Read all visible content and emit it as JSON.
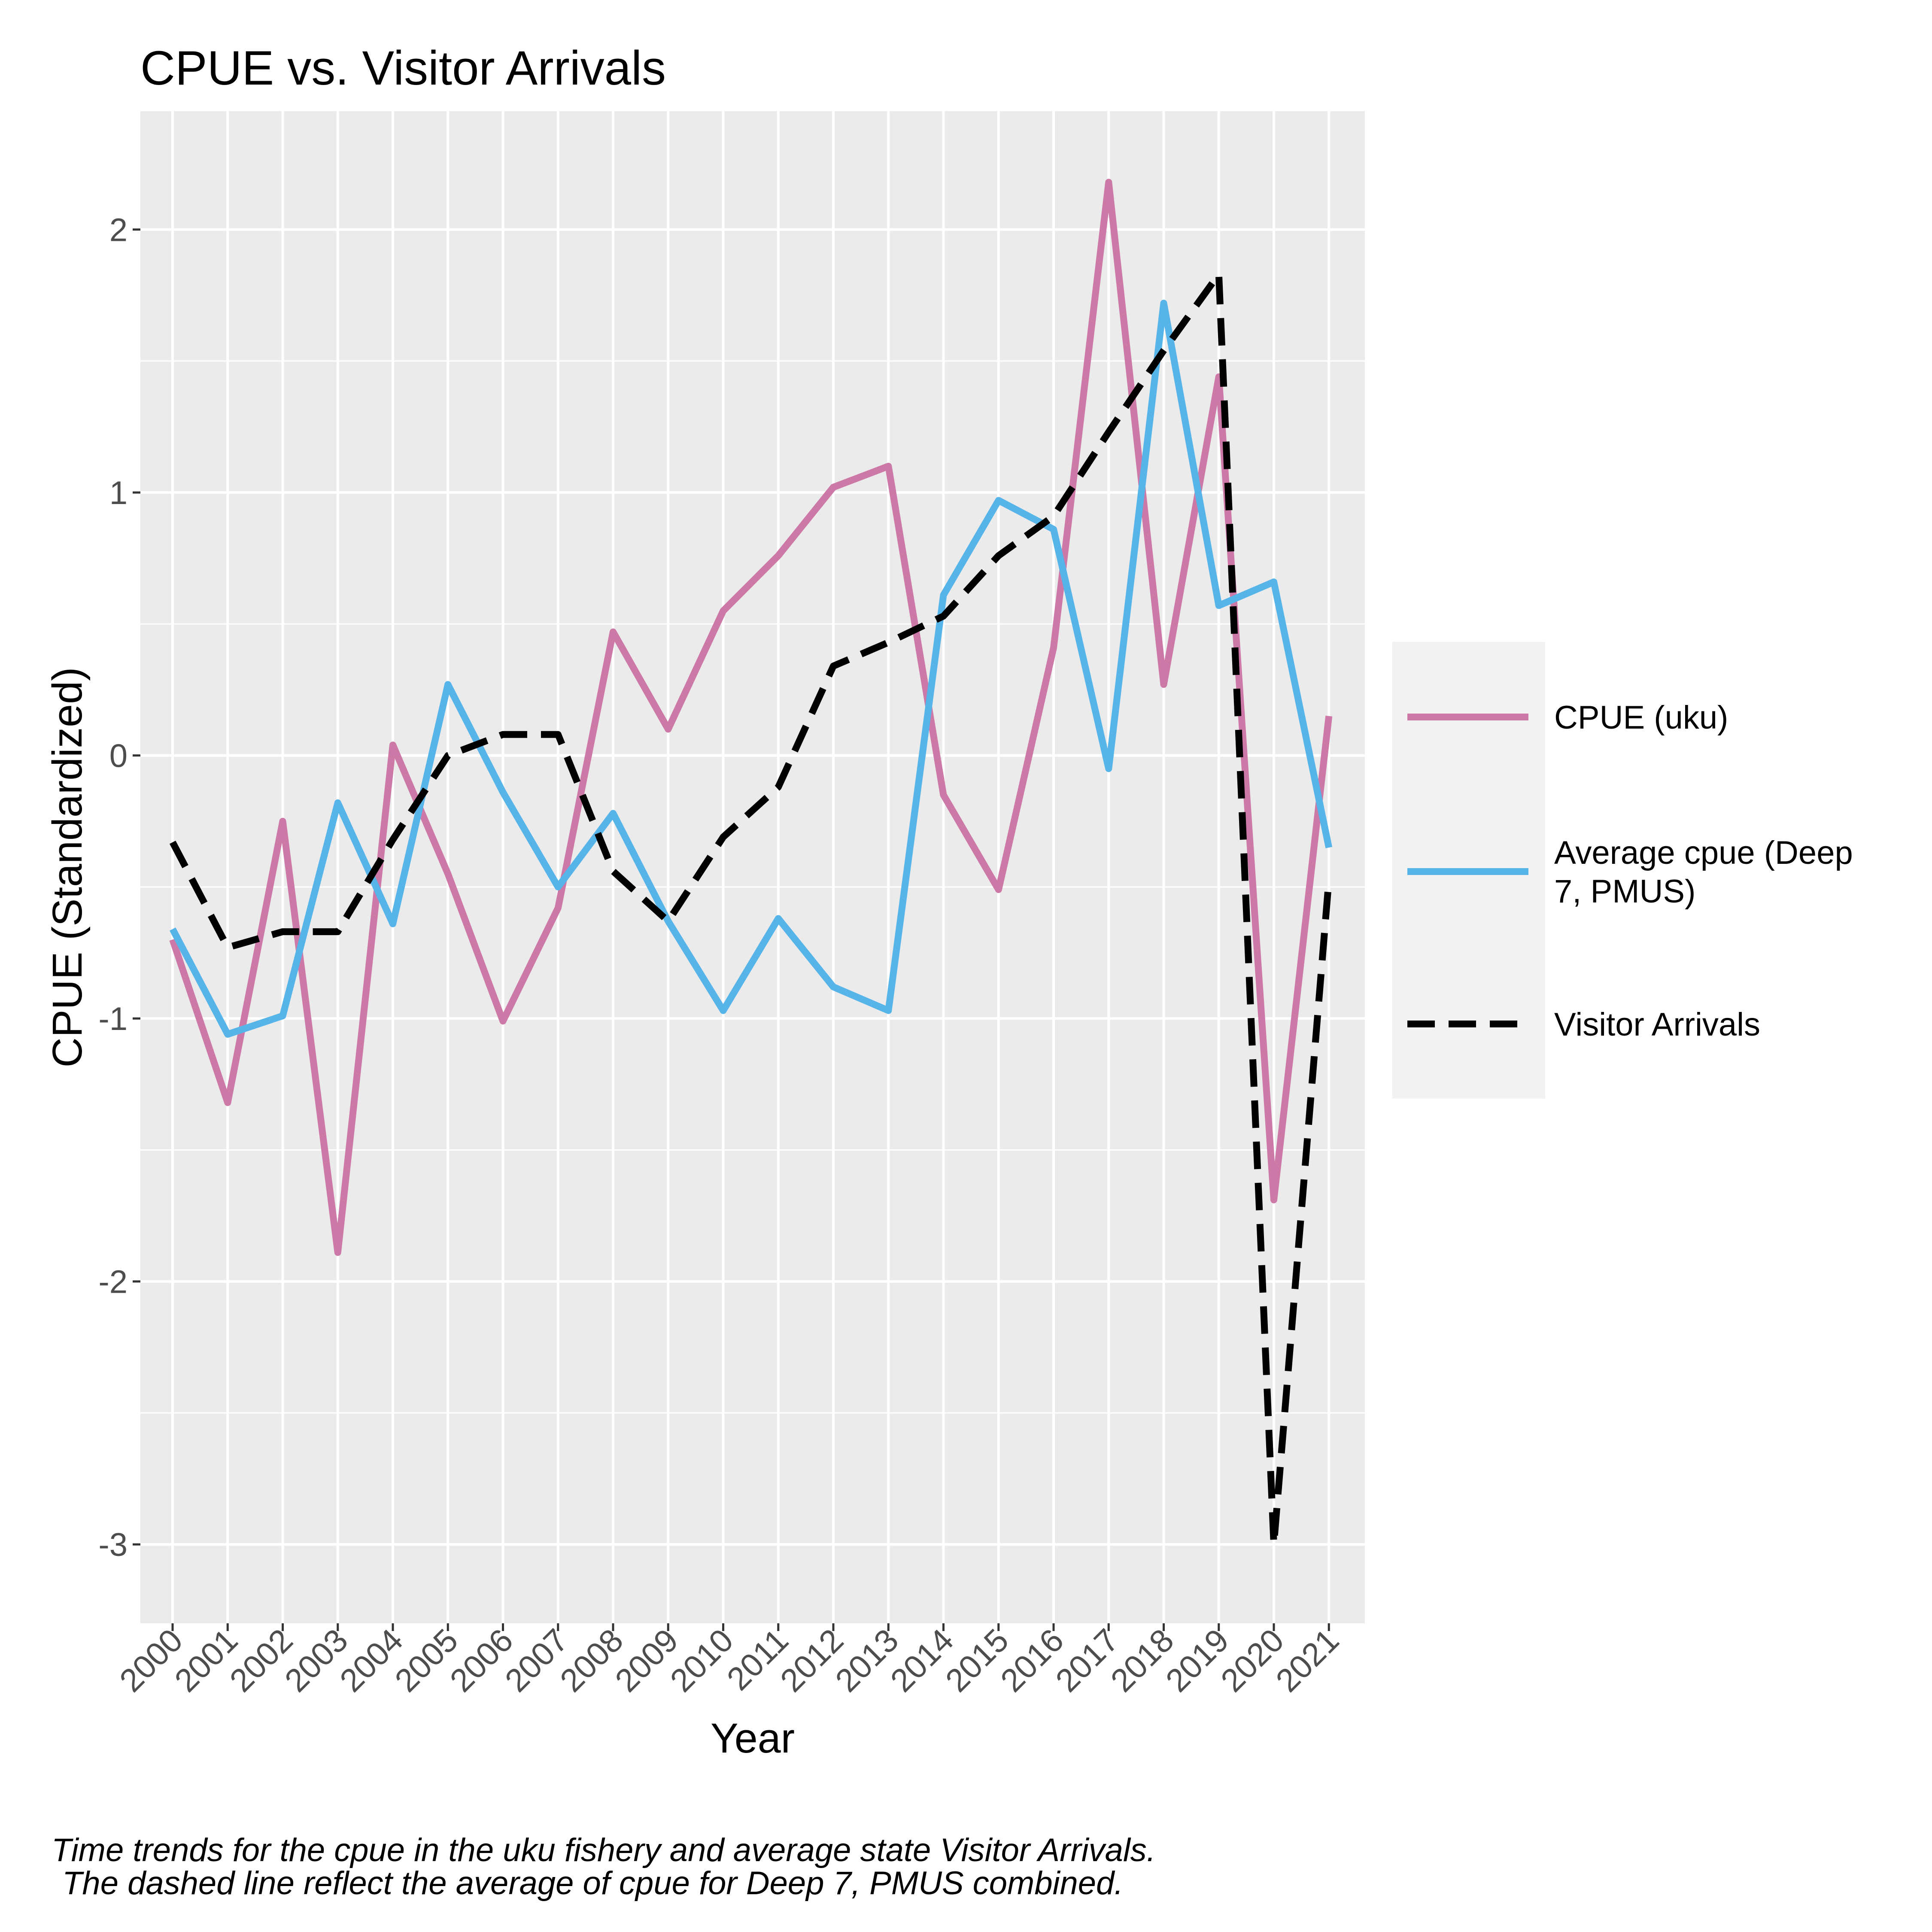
{
  "chart_data": {
    "type": "line",
    "title": "CPUE vs. Visitor Arrivals",
    "xlabel": "Year",
    "ylabel": "CPUE (Standardized)",
    "categories": [
      "2000",
      "2001",
      "2002",
      "2003",
      "2004",
      "2005",
      "2006",
      "2007",
      "2008",
      "2009",
      "2010",
      "2011",
      "2012",
      "2013",
      "2014",
      "2015",
      "2016",
      "2017",
      "2018",
      "2019",
      "2020",
      "2021"
    ],
    "yticks": [
      -3,
      -2,
      -1,
      0,
      1,
      2
    ],
    "ytick_labels": [
      "-3",
      "-2",
      "-1",
      "0",
      "1",
      "2"
    ],
    "ylim": [
      -3.3,
      2.45
    ],
    "grid": true,
    "legend_position": "right",
    "series": [
      {
        "name": "CPUE (uku)",
        "color": "#CC79A7",
        "dashed": false,
        "values": [
          -0.7,
          -1.32,
          -0.25,
          -1.89,
          0.04,
          -0.45,
          -1.01,
          -0.58,
          0.47,
          0.1,
          0.55,
          0.76,
          1.02,
          1.1,
          -0.15,
          -0.51,
          0.41,
          2.18,
          0.27,
          1.44,
          -1.69,
          0.15
        ]
      },
      {
        "name": "Average cpue (Deep 7, PMUS)",
        "legend_lines": [
          "Average cpue (Deep",
          "7, PMUS)"
        ],
        "color": "#56B4E9",
        "dashed": false,
        "values": [
          -0.66,
          -1.06,
          -0.99,
          -0.18,
          -0.64,
          0.27,
          -0.14,
          -0.5,
          -0.22,
          -0.63,
          -0.97,
          -0.62,
          -0.88,
          -0.97,
          0.61,
          0.97,
          0.86,
          -0.05,
          1.72,
          0.57,
          0.66,
          -0.35
        ]
      },
      {
        "name": "Visitor Arrivals",
        "color": "#000000",
        "dashed": true,
        "values": [
          -0.33,
          -0.73,
          -0.67,
          -0.67,
          -0.32,
          0.0,
          0.08,
          0.08,
          -0.44,
          -0.63,
          -0.31,
          -0.12,
          0.34,
          0.43,
          0.53,
          0.76,
          0.91,
          1.23,
          1.54,
          1.83,
          -3.0,
          -0.47
        ]
      }
    ]
  },
  "caption": {
    "line1": "Time trends for the cpue in the uku fishery and average state Visitor Arrivals.",
    "line2": "The dashed line reflect the average of cpue for Deep 7, PMUS combined."
  }
}
